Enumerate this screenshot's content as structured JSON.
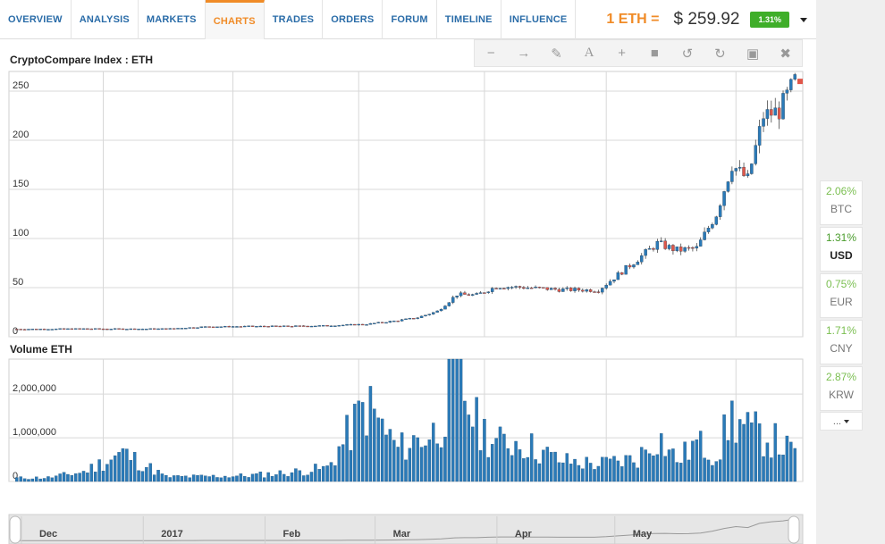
{
  "nav": {
    "tabs": [
      {
        "label": "OVERVIEW",
        "active": false
      },
      {
        "label": "ANALYSIS",
        "active": false
      },
      {
        "label": "MARKETS",
        "active": false
      },
      {
        "label": "CHARTS",
        "active": true
      },
      {
        "label": "TRADES",
        "active": false
      },
      {
        "label": "ORDERS",
        "active": false
      },
      {
        "label": "FORUM",
        "active": false
      },
      {
        "label": "TIMELINE",
        "active": false
      },
      {
        "label": "INFLUENCE",
        "active": false
      }
    ],
    "price_label": "1 ETH =",
    "price_value": "$ 259.92",
    "change_badge": "1.31%",
    "accent": "#f08b27",
    "badge_color": "#3fae29"
  },
  "toolbar": {
    "tools": [
      "minus-icon",
      "arrow-right-icon",
      "pencil-icon",
      "text-icon",
      "plus-icon",
      "square-icon",
      "undo-icon",
      "redo-icon",
      "save-icon",
      "trash-icon"
    ]
  },
  "currencies": [
    {
      "pct": "2.06%",
      "name": "BTC",
      "active": false
    },
    {
      "pct": "1.31%",
      "name": "USD",
      "active": true
    },
    {
      "pct": "0.75%",
      "name": "EUR",
      "active": false
    },
    {
      "pct": "1.71%",
      "name": "CNY",
      "active": false
    },
    {
      "pct": "2.87%",
      "name": "KRW",
      "active": false
    }
  ],
  "more_label": "...",
  "chart_data": [
    {
      "type": "candlestick",
      "title": "CryptoCompare Index : ETH",
      "ylim": [
        0,
        270
      ],
      "yticks": [
        "0",
        "50",
        "100",
        "150",
        "200",
        "250"
      ],
      "ytick_values": [
        0,
        50,
        100,
        150,
        200,
        250
      ],
      "grid": true,
      "up_color": "#2a7ab8",
      "down_color": "#e0574a",
      "x": [
        "2016-11-23",
        "2016-12-01",
        "2016-12-10",
        "2016-12-20",
        "2016-12-31",
        "2017-01-10",
        "2017-01-20",
        "2017-01-31",
        "2017-02-10",
        "2017-02-20",
        "2017-02-28",
        "2017-03-05",
        "2017-03-10",
        "2017-03-15",
        "2017-03-20",
        "2017-03-25",
        "2017-03-31",
        "2017-04-10",
        "2017-04-20",
        "2017-04-30",
        "2017-05-05",
        "2017-05-10",
        "2017-05-15",
        "2017-05-20",
        "2017-05-24",
        "2017-05-28",
        "2017-06-01",
        "2017-06-05",
        "2017-06-09"
      ],
      "close": [
        7.8,
        7.9,
        8.2,
        8.0,
        8.1,
        10.2,
        10.6,
        10.8,
        11.3,
        12.8,
        16.5,
        19.5,
        26.0,
        43.0,
        42.5,
        51.0,
        50.5,
        48.0,
        47.5,
        79.0,
        95.0,
        88.0,
        90.0,
        125.0,
        175.0,
        160.0,
        225.0,
        230.0,
        259.9
      ]
    },
    {
      "type": "bar",
      "title": "Volume ETH",
      "ylim": [
        0,
        2800000
      ],
      "yticks": [
        "0",
        "1,000,000",
        "2,000,000"
      ],
      "ytick_values": [
        0,
        1000000,
        2000000
      ],
      "x": [
        "2016-11-23",
        "2016-12-01",
        "2016-12-10",
        "2016-12-20",
        "2016-12-31",
        "2017-01-10",
        "2017-01-20",
        "2017-01-31",
        "2017-02-10",
        "2017-02-20",
        "2017-02-28",
        "2017-03-05",
        "2017-03-10",
        "2017-03-15",
        "2017-03-20",
        "2017-03-25",
        "2017-03-31",
        "2017-04-10",
        "2017-04-20",
        "2017-04-30",
        "2017-05-05",
        "2017-05-10",
        "2017-05-15",
        "2017-05-20",
        "2017-05-24",
        "2017-05-28",
        "2017-06-01",
        "2017-06-05",
        "2017-06-09"
      ],
      "values": [
        90000,
        100000,
        250000,
        750000,
        120000,
        130000,
        150000,
        230000,
        350000,
        2000000,
        850000,
        1100000,
        1300000,
        2800000,
        1500000,
        1000000,
        1050000,
        550000,
        450000,
        600000,
        1200000,
        550000,
        1000000,
        700000,
        1700000,
        1300000,
        1200000,
        1000000,
        700000
      ],
      "color": "#2a7ab8"
    }
  ],
  "timeline": {
    "labels": [
      "Dec",
      "2017",
      "Feb",
      "Mar",
      "Apr",
      "May"
    ]
  }
}
